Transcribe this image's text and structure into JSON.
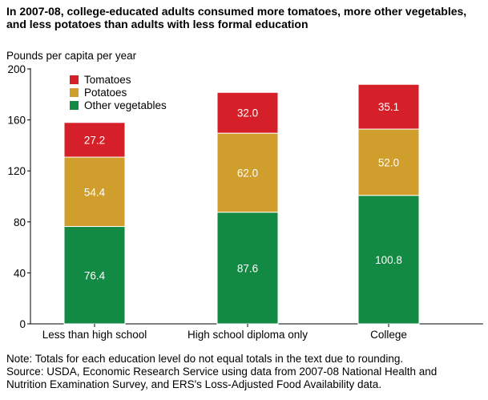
{
  "title": "In 2007-08, college-educated adults consumed more tomatoes, more other vegetables, and less potatoes than adults with less formal education",
  "notes": {
    "note": "Note: Totals for each education level do not equal totals in the text due to rounding.",
    "source_line1": "Source: USDA, Economic Research Service using data from 2007-08 National Health and",
    "source_line2": "Nutrition Examination Survey, and ERS's Loss-Adjusted Food Availability data."
  },
  "chart_data": {
    "type": "bar",
    "stacked": true,
    "ylabel": "Pounds per capita per year",
    "xlabel": "",
    "ylim": [
      0,
      200
    ],
    "yticks": [
      0,
      40,
      80,
      120,
      160,
      200
    ],
    "categories": [
      "Less than high school",
      "High school diploma only",
      "College"
    ],
    "series": [
      {
        "name": "Other vegetables",
        "color": "#138a43",
        "values": [
          76.4,
          87.6,
          100.8
        ]
      },
      {
        "name": "Potatoes",
        "color": "#cf9e2c",
        "values": [
          54.4,
          62.0,
          52.0
        ]
      },
      {
        "name": "Tomatoes",
        "color": "#d5202a",
        "values": [
          27.2,
          32.0,
          35.1
        ]
      }
    ],
    "value_labels": [
      [
        "76.4",
        "87.6",
        "100.8"
      ],
      [
        "54.4",
        "62.0",
        "52.0"
      ],
      [
        "27.2",
        "32.0",
        "35.1"
      ]
    ],
    "legend_order": [
      "Tomatoes",
      "Potatoes",
      "Other vegetables"
    ],
    "legend_position": "top-left",
    "grid": false
  }
}
